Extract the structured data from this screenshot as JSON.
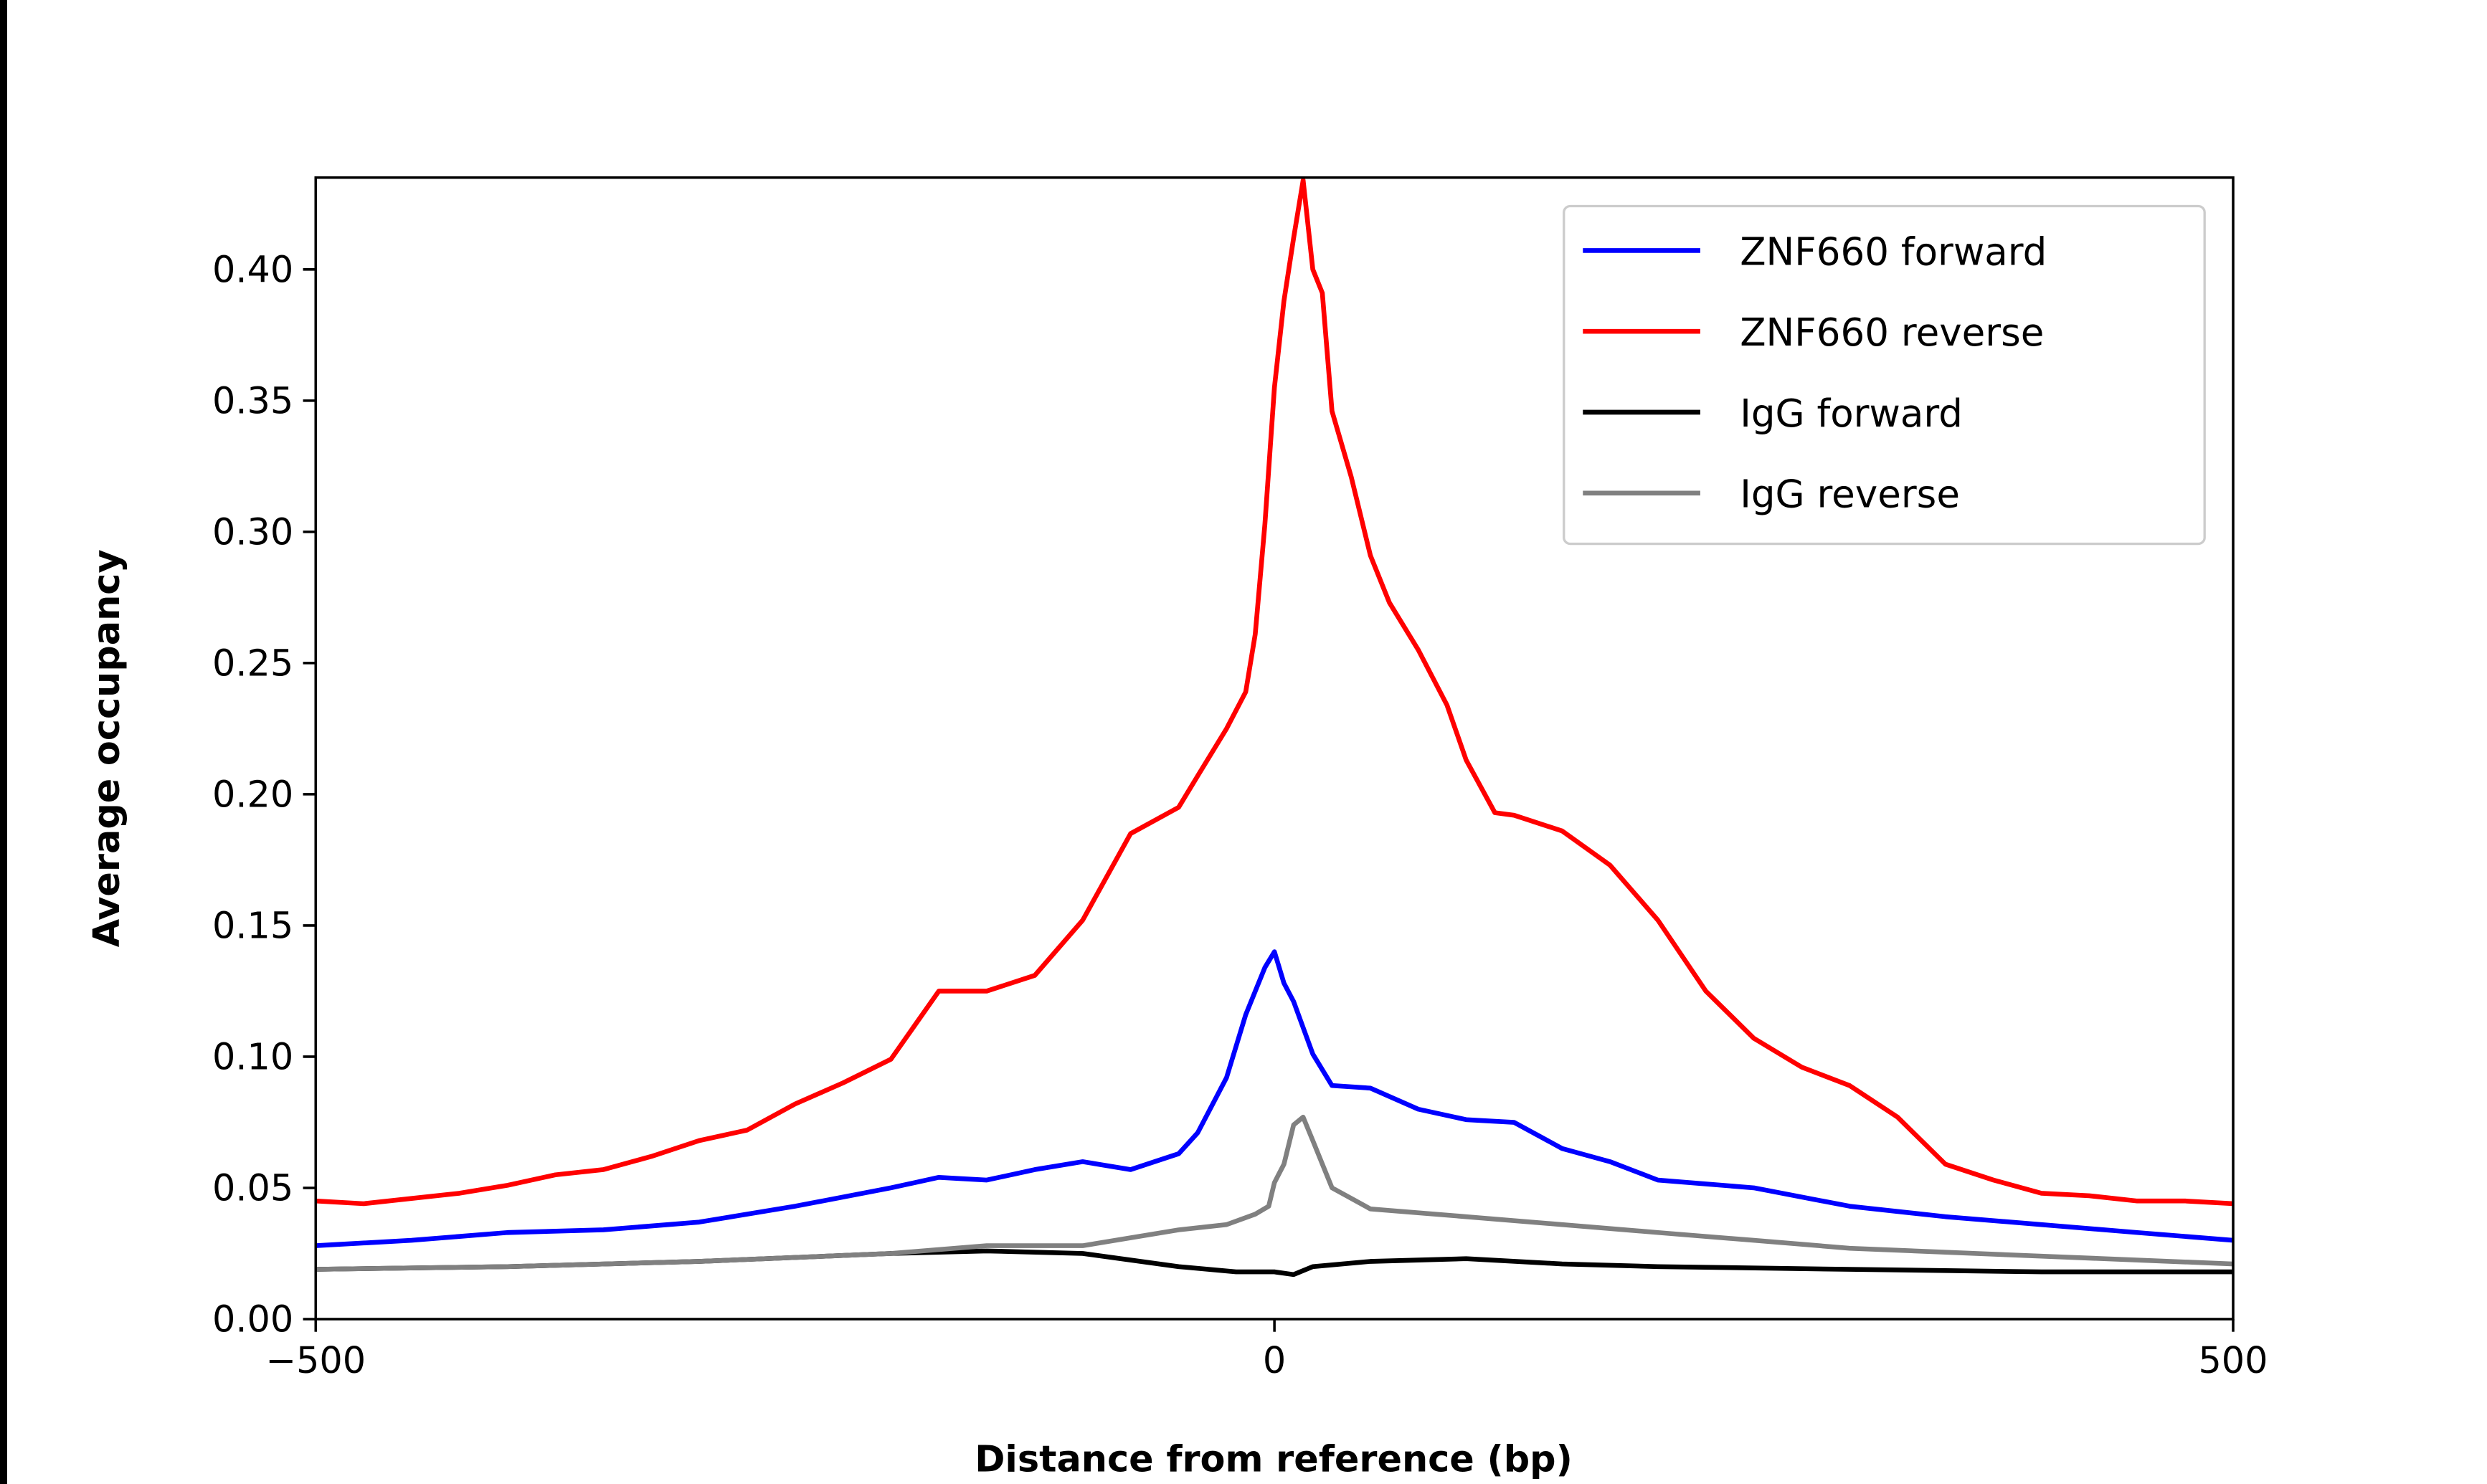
{
  "chart_data": {
    "type": "line",
    "title": "",
    "xlabel": "Distance from reference (bp)",
    "ylabel": "Average occupancy",
    "xlim": [
      -500,
      500
    ],
    "ylim": [
      0,
      0.435
    ],
    "xticks": [
      -500,
      0,
      500
    ],
    "xtick_labels": [
      "−500",
      "0",
      "500"
    ],
    "yticks": [
      0,
      0.05,
      0.1,
      0.15,
      0.2,
      0.25,
      0.3,
      0.35,
      0.4
    ],
    "ytick_labels": [
      "0.00",
      "0.05",
      "0.10",
      "0.15",
      "0.20",
      "0.25",
      "0.30",
      "0.35",
      "0.40"
    ],
    "grid": false,
    "legend_position": "top-right",
    "series": [
      {
        "name": "ZNF660 forward",
        "color": "#0000ff",
        "x": [
          -500,
          -450,
          -400,
          -350,
          -300,
          -250,
          -200,
          -175,
          -150,
          -125,
          -100,
          -75,
          -50,
          -40,
          -25,
          -15,
          -5,
          0,
          5,
          10,
          20,
          30,
          50,
          75,
          100,
          125,
          150,
          175,
          200,
          250,
          300,
          350,
          400,
          450,
          500
        ],
        "y": [
          0.028,
          0.03,
          0.033,
          0.034,
          0.037,
          0.043,
          0.05,
          0.054,
          0.053,
          0.057,
          0.06,
          0.057,
          0.063,
          0.071,
          0.092,
          0.116,
          0.134,
          0.14,
          0.128,
          0.121,
          0.101,
          0.089,
          0.088,
          0.08,
          0.076,
          0.075,
          0.065,
          0.06,
          0.053,
          0.05,
          0.043,
          0.039,
          0.036,
          0.033,
          0.03
        ]
      },
      {
        "name": "ZNF660 reverse",
        "color": "#ff0000",
        "x": [
          -500,
          -475,
          -450,
          -425,
          -400,
          -375,
          -350,
          -325,
          -300,
          -275,
          -250,
          -225,
          -200,
          -175,
          -150,
          -125,
          -100,
          -75,
          -50,
          -40,
          -25,
          -15,
          -10,
          -5,
          0,
          5,
          10,
          15,
          20,
          25,
          30,
          40,
          50,
          60,
          75,
          90,
          100,
          115,
          125,
          150,
          175,
          200,
          225,
          250,
          275,
          300,
          325,
          350,
          375,
          400,
          425,
          450,
          475,
          500
        ],
        "y": [
          0.045,
          0.044,
          0.046,
          0.048,
          0.051,
          0.055,
          0.057,
          0.062,
          0.068,
          0.072,
          0.082,
          0.09,
          0.099,
          0.125,
          0.125,
          0.131,
          0.152,
          0.185,
          0.195,
          0.207,
          0.225,
          0.239,
          0.261,
          0.303,
          0.355,
          0.388,
          0.412,
          0.434,
          0.4,
          0.391,
          0.346,
          0.321,
          0.291,
          0.273,
          0.255,
          0.234,
          0.213,
          0.193,
          0.192,
          0.186,
          0.173,
          0.152,
          0.125,
          0.107,
          0.096,
          0.089,
          0.077,
          0.059,
          0.053,
          0.048,
          0.047,
          0.045,
          0.045,
          0.044
        ]
      },
      {
        "name": "IgG forward",
        "color": "#000000",
        "x": [
          -500,
          -400,
          -300,
          -200,
          -150,
          -100,
          -50,
          -20,
          0,
          10,
          20,
          50,
          100,
          150,
          200,
          300,
          400,
          500
        ],
        "y": [
          0.019,
          0.02,
          0.022,
          0.025,
          0.026,
          0.025,
          0.02,
          0.018,
          0.018,
          0.017,
          0.02,
          0.022,
          0.023,
          0.021,
          0.02,
          0.019,
          0.018,
          0.018
        ]
      },
      {
        "name": "IgG reverse",
        "color": "#808080",
        "x": [
          -500,
          -400,
          -300,
          -200,
          -150,
          -100,
          -50,
          -25,
          -10,
          -3,
          0,
          5,
          10,
          15,
          20,
          30,
          50,
          100,
          150,
          200,
          250,
          300,
          400,
          500
        ],
        "y": [
          0.019,
          0.02,
          0.022,
          0.025,
          0.028,
          0.028,
          0.034,
          0.036,
          0.04,
          0.043,
          0.052,
          0.059,
          0.074,
          0.077,
          0.068,
          0.05,
          0.042,
          0.039,
          0.036,
          0.033,
          0.03,
          0.027,
          0.024,
          0.021
        ]
      }
    ]
  }
}
